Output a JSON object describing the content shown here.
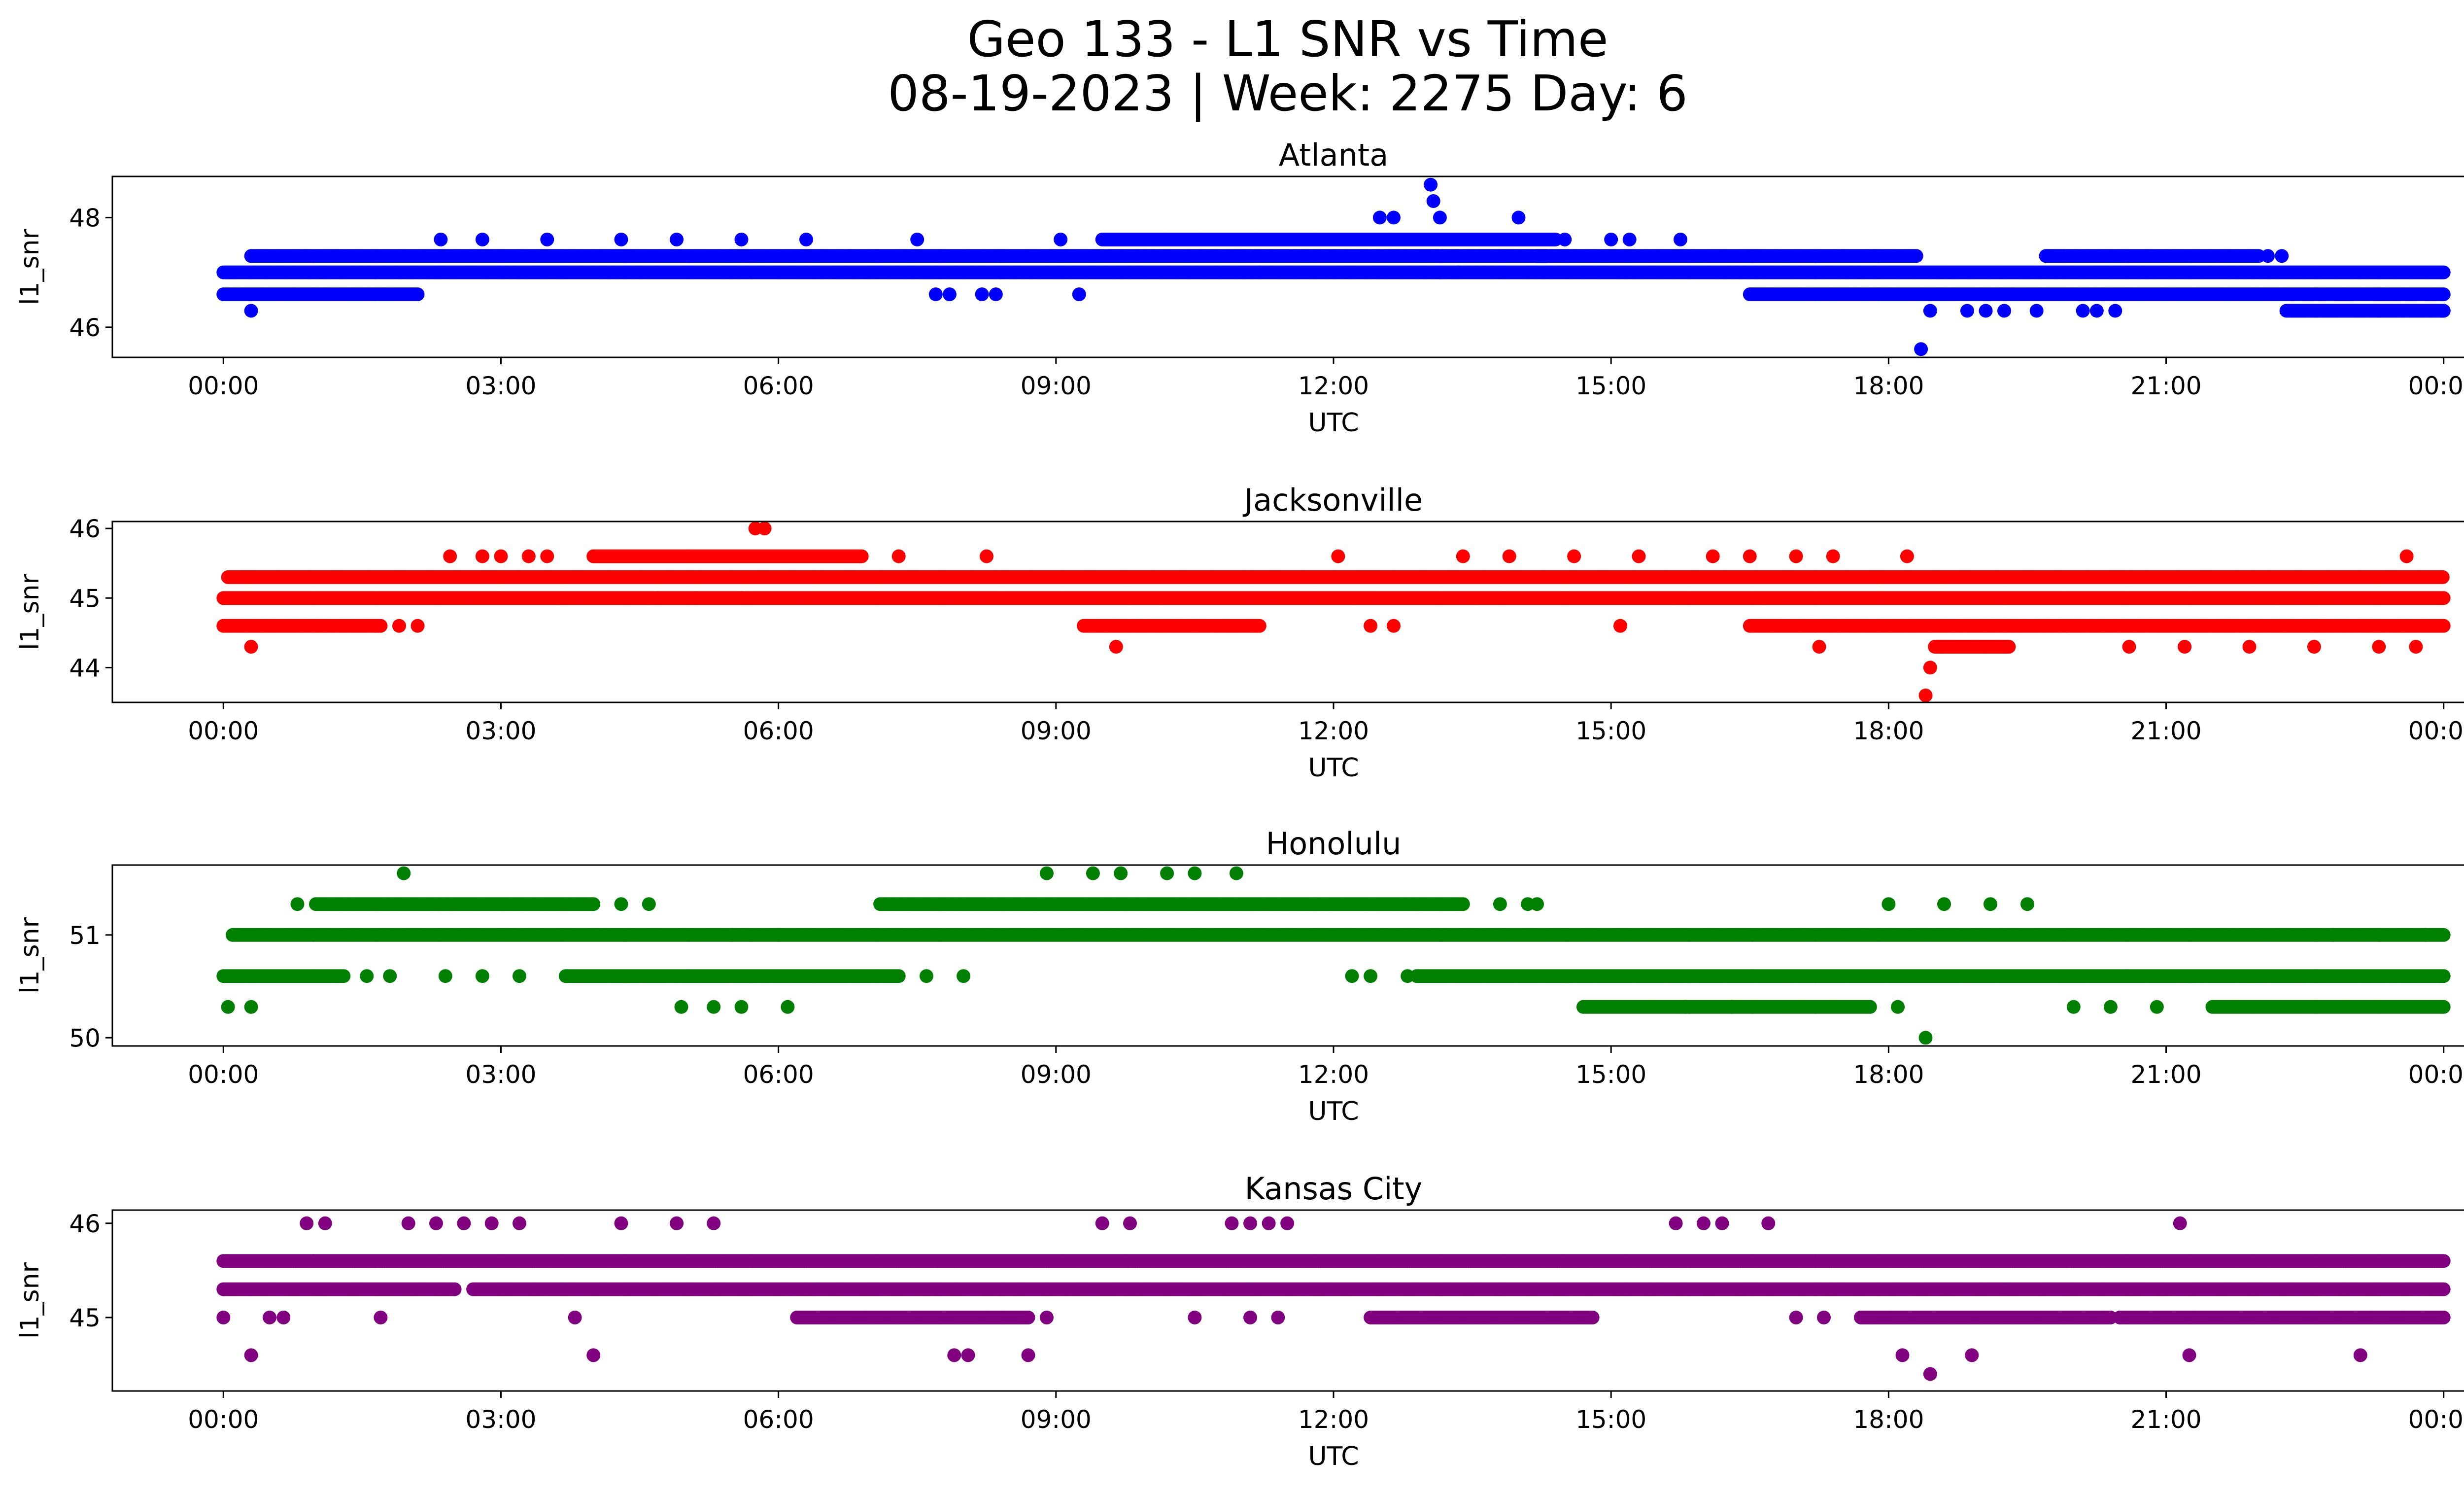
{
  "figure": {
    "title_line1": "Geo 133 - L1 SNR vs Time",
    "title_line2": "08-19-2023 | Week: 2275 Day: 6"
  },
  "chart_data": [
    {
      "type": "scatter",
      "title": "Atlanta",
      "xlabel": "UTC",
      "ylabel": "l1_snr",
      "color": "#0000ff",
      "x_ticks": [
        "00:00",
        "03:00",
        "06:00",
        "09:00",
        "12:00",
        "15:00",
        "18:00",
        "21:00",
        "00:00"
      ],
      "xlim_hours": [
        -1.2,
        25.2
      ],
      "y_ticks": [
        46,
        48
      ],
      "ylim": [
        45.45,
        48.75
      ],
      "base_levels": [
        {
          "from_hours": 0.0,
          "to_hours": 24.0,
          "y": 47.0
        },
        {
          "from_hours": 0.0,
          "to_hours": 2.1,
          "y": 46.6
        },
        {
          "from_hours": 0.3,
          "to_hours": 14.3,
          "y": 47.3
        },
        {
          "from_hours": 9.5,
          "to_hours": 14.4,
          "y": 47.6
        },
        {
          "from_hours": 16.5,
          "to_hours": 24.0,
          "y": 46.6
        },
        {
          "from_hours": 14.2,
          "to_hours": 18.3,
          "y": 47.3
        },
        {
          "from_hours": 19.7,
          "to_hours": 22.0,
          "y": 47.3
        },
        {
          "from_hours": 22.3,
          "to_hours": 24.0,
          "y": 46.3
        }
      ],
      "points": [
        {
          "x_hours": 0.3,
          "y": 46.3
        },
        {
          "x_hours": 2.35,
          "y": 47.6
        },
        {
          "x_hours": 2.8,
          "y": 47.6
        },
        {
          "x_hours": 3.5,
          "y": 47.6
        },
        {
          "x_hours": 4.3,
          "y": 47.6
        },
        {
          "x_hours": 4.9,
          "y": 47.6
        },
        {
          "x_hours": 5.6,
          "y": 47.6
        },
        {
          "x_hours": 6.3,
          "y": 47.6
        },
        {
          "x_hours": 7.5,
          "y": 47.6
        },
        {
          "x_hours": 7.7,
          "y": 46.6
        },
        {
          "x_hours": 7.85,
          "y": 46.6
        },
        {
          "x_hours": 8.2,
          "y": 46.6
        },
        {
          "x_hours": 8.35,
          "y": 46.6
        },
        {
          "x_hours": 9.05,
          "y": 47.6
        },
        {
          "x_hours": 9.25,
          "y": 46.6
        },
        {
          "x_hours": 11.2,
          "y": 47.0
        },
        {
          "x_hours": 12.5,
          "y": 48.0
        },
        {
          "x_hours": 12.65,
          "y": 48.0
        },
        {
          "x_hours": 13.05,
          "y": 48.6
        },
        {
          "x_hours": 13.08,
          "y": 48.3
        },
        {
          "x_hours": 13.15,
          "y": 48.0
        },
        {
          "x_hours": 13.35,
          "y": 47.0
        },
        {
          "x_hours": 14.0,
          "y": 48.0
        },
        {
          "x_hours": 14.5,
          "y": 47.6
        },
        {
          "x_hours": 15.0,
          "y": 47.6
        },
        {
          "x_hours": 15.2,
          "y": 47.6
        },
        {
          "x_hours": 15.75,
          "y": 47.6
        },
        {
          "x_hours": 18.35,
          "y": 45.6
        },
        {
          "x_hours": 18.45,
          "y": 46.3
        },
        {
          "x_hours": 18.85,
          "y": 46.3
        },
        {
          "x_hours": 19.05,
          "y": 46.3
        },
        {
          "x_hours": 19.25,
          "y": 46.3
        },
        {
          "x_hours": 19.6,
          "y": 46.3
        },
        {
          "x_hours": 20.1,
          "y": 46.3
        },
        {
          "x_hours": 20.25,
          "y": 46.3
        },
        {
          "x_hours": 20.45,
          "y": 46.3
        },
        {
          "x_hours": 22.1,
          "y": 47.3
        },
        {
          "x_hours": 22.25,
          "y": 47.3
        },
        {
          "x_hours": 24.0,
          "y": 46.3
        }
      ]
    },
    {
      "type": "scatter",
      "title": "Jacksonville",
      "xlabel": "UTC",
      "ylabel": "l1_snr",
      "color": "#ff0000",
      "x_ticks": [
        "00:00",
        "03:00",
        "06:00",
        "09:00",
        "12:00",
        "15:00",
        "18:00",
        "21:00",
        "00:00"
      ],
      "xlim_hours": [
        -1.2,
        25.2
      ],
      "y_ticks": [
        44,
        45,
        46
      ],
      "ylim": [
        43.5,
        46.1
      ],
      "base_levels": [
        {
          "from_hours": 0.0,
          "to_hours": 24.0,
          "y": 45.0
        },
        {
          "from_hours": 0.05,
          "to_hours": 24.0,
          "y": 45.3
        },
        {
          "from_hours": 0.0,
          "to_hours": 1.7,
          "y": 44.6
        },
        {
          "from_hours": 9.3,
          "to_hours": 11.2,
          "y": 44.6
        },
        {
          "from_hours": 16.5,
          "to_hours": 24.0,
          "y": 44.6
        },
        {
          "from_hours": 4.0,
          "to_hours": 6.9,
          "y": 45.6
        },
        {
          "from_hours": 18.5,
          "to_hours": 19.3,
          "y": 44.3
        }
      ],
      "points": [
        {
          "x_hours": 0.3,
          "y": 44.3
        },
        {
          "x_hours": 1.9,
          "y": 44.6
        },
        {
          "x_hours": 2.1,
          "y": 44.6
        },
        {
          "x_hours": 2.45,
          "y": 45.6
        },
        {
          "x_hours": 2.8,
          "y": 45.6
        },
        {
          "x_hours": 3.0,
          "y": 45.6
        },
        {
          "x_hours": 3.3,
          "y": 45.6
        },
        {
          "x_hours": 3.5,
          "y": 45.6
        },
        {
          "x_hours": 4.7,
          "y": 45.0
        },
        {
          "x_hours": 5.1,
          "y": 45.0
        },
        {
          "x_hours": 5.6,
          "y": 45.0
        },
        {
          "x_hours": 5.75,
          "y": 46.0
        },
        {
          "x_hours": 5.85,
          "y": 46.0
        },
        {
          "x_hours": 7.3,
          "y": 45.6
        },
        {
          "x_hours": 8.25,
          "y": 45.6
        },
        {
          "x_hours": 9.65,
          "y": 44.3
        },
        {
          "x_hours": 12.05,
          "y": 45.6
        },
        {
          "x_hours": 12.4,
          "y": 44.6
        },
        {
          "x_hours": 12.65,
          "y": 44.6
        },
        {
          "x_hours": 13.4,
          "y": 45.6
        },
        {
          "x_hours": 13.9,
          "y": 45.6
        },
        {
          "x_hours": 14.6,
          "y": 45.6
        },
        {
          "x_hours": 15.1,
          "y": 44.6
        },
        {
          "x_hours": 15.3,
          "y": 45.6
        },
        {
          "x_hours": 16.1,
          "y": 45.6
        },
        {
          "x_hours": 16.5,
          "y": 45.6
        },
        {
          "x_hours": 17.0,
          "y": 45.6
        },
        {
          "x_hours": 17.25,
          "y": 44.3
        },
        {
          "x_hours": 17.4,
          "y": 45.6
        },
        {
          "x_hours": 18.2,
          "y": 45.6
        },
        {
          "x_hours": 18.4,
          "y": 43.6
        },
        {
          "x_hours": 18.45,
          "y": 44.0
        },
        {
          "x_hours": 20.6,
          "y": 44.3
        },
        {
          "x_hours": 21.2,
          "y": 44.3
        },
        {
          "x_hours": 21.9,
          "y": 44.3
        },
        {
          "x_hours": 22.6,
          "y": 44.3
        },
        {
          "x_hours": 23.3,
          "y": 44.3
        },
        {
          "x_hours": 23.6,
          "y": 45.6
        },
        {
          "x_hours": 23.7,
          "y": 44.3
        }
      ]
    },
    {
      "type": "scatter",
      "title": "Honolulu",
      "xlabel": "UTC",
      "ylabel": "l1_snr",
      "color": "#008000",
      "x_ticks": [
        "00:00",
        "03:00",
        "06:00",
        "09:00",
        "12:00",
        "15:00",
        "18:00",
        "21:00",
        "00:00"
      ],
      "xlim_hours": [
        -1.2,
        25.2
      ],
      "y_ticks": [
        50,
        51
      ],
      "ylim": [
        49.92,
        51.68
      ],
      "base_levels": [
        {
          "from_hours": 0.1,
          "to_hours": 24.0,
          "y": 51.0
        },
        {
          "from_hours": 0.0,
          "to_hours": 1.3,
          "y": 50.6
        },
        {
          "from_hours": 3.7,
          "to_hours": 7.3,
          "y": 50.6
        },
        {
          "from_hours": 12.9,
          "to_hours": 24.0,
          "y": 50.6
        },
        {
          "from_hours": 1.0,
          "to_hours": 4.0,
          "y": 51.3
        },
        {
          "from_hours": 7.1,
          "to_hours": 13.4,
          "y": 51.3
        },
        {
          "from_hours": 14.7,
          "to_hours": 17.8,
          "y": 50.3
        },
        {
          "from_hours": 21.5,
          "to_hours": 24.0,
          "y": 50.3
        }
      ],
      "points": [
        {
          "x_hours": 0.05,
          "y": 50.3
        },
        {
          "x_hours": 0.3,
          "y": 50.3
        },
        {
          "x_hours": 0.8,
          "y": 51.3
        },
        {
          "x_hours": 1.55,
          "y": 50.6
        },
        {
          "x_hours": 1.8,
          "y": 50.6
        },
        {
          "x_hours": 1.95,
          "y": 51.6
        },
        {
          "x_hours": 2.4,
          "y": 50.6
        },
        {
          "x_hours": 2.8,
          "y": 50.6
        },
        {
          "x_hours": 3.2,
          "y": 50.6
        },
        {
          "x_hours": 4.3,
          "y": 51.3
        },
        {
          "x_hours": 4.6,
          "y": 51.3
        },
        {
          "x_hours": 4.95,
          "y": 50.3
        },
        {
          "x_hours": 5.3,
          "y": 50.3
        },
        {
          "x_hours": 5.6,
          "y": 50.3
        },
        {
          "x_hours": 6.1,
          "y": 50.3
        },
        {
          "x_hours": 5.5,
          "y": 51.0
        },
        {
          "x_hours": 6.0,
          "y": 51.0
        },
        {
          "x_hours": 7.6,
          "y": 50.6
        },
        {
          "x_hours": 8.0,
          "y": 50.6
        },
        {
          "x_hours": 8.9,
          "y": 51.6
        },
        {
          "x_hours": 9.4,
          "y": 51.6
        },
        {
          "x_hours": 9.7,
          "y": 51.6
        },
        {
          "x_hours": 10.2,
          "y": 51.6
        },
        {
          "x_hours": 10.5,
          "y": 51.6
        },
        {
          "x_hours": 10.95,
          "y": 51.6
        },
        {
          "x_hours": 12.2,
          "y": 50.6
        },
        {
          "x_hours": 12.4,
          "y": 50.6
        },
        {
          "x_hours": 12.8,
          "y": 50.6
        },
        {
          "x_hours": 13.8,
          "y": 51.3
        },
        {
          "x_hours": 14.1,
          "y": 51.3
        },
        {
          "x_hours": 14.2,
          "y": 51.3
        },
        {
          "x_hours": 15.8,
          "y": 50.3
        },
        {
          "x_hours": 16.3,
          "y": 50.3
        },
        {
          "x_hours": 18.0,
          "y": 51.3
        },
        {
          "x_hours": 18.1,
          "y": 50.3
        },
        {
          "x_hours": 18.4,
          "y": 50.0
        },
        {
          "x_hours": 18.6,
          "y": 51.3
        },
        {
          "x_hours": 19.1,
          "y": 51.3
        },
        {
          "x_hours": 19.5,
          "y": 51.3
        },
        {
          "x_hours": 20.0,
          "y": 50.3
        },
        {
          "x_hours": 20.4,
          "y": 50.3
        },
        {
          "x_hours": 20.9,
          "y": 50.3
        },
        {
          "x_hours": 22.8,
          "y": 51.0
        },
        {
          "x_hours": 23.3,
          "y": 51.0
        },
        {
          "x_hours": 23.8,
          "y": 51.0
        }
      ]
    },
    {
      "type": "scatter",
      "title": "Kansas City",
      "xlabel": "UTC",
      "ylabel": "l1_snr",
      "color": "#800080",
      "x_ticks": [
        "00:00",
        "03:00",
        "06:00",
        "09:00",
        "12:00",
        "15:00",
        "18:00",
        "21:00",
        "00:00"
      ],
      "xlim_hours": [
        -1.2,
        25.2
      ],
      "y_ticks": [
        45,
        46
      ],
      "ylim": [
        44.22,
        46.14
      ],
      "base_levels": [
        {
          "from_hours": 0.0,
          "to_hours": 24.0,
          "y": 45.6
        },
        {
          "from_hours": 0.0,
          "to_hours": 2.5,
          "y": 45.3
        },
        {
          "from_hours": 2.7,
          "to_hours": 24.0,
          "y": 45.3
        },
        {
          "from_hours": 6.2,
          "to_hours": 8.7,
          "y": 45.0
        },
        {
          "from_hours": 12.4,
          "to_hours": 14.8,
          "y": 45.0
        },
        {
          "from_hours": 17.7,
          "to_hours": 20.4,
          "y": 45.0
        },
        {
          "from_hours": 20.5,
          "to_hours": 24.0,
          "y": 45.0
        }
      ],
      "points": [
        {
          "x_hours": 0.0,
          "y": 45.0
        },
        {
          "x_hours": 0.3,
          "y": 44.6
        },
        {
          "x_hours": 0.5,
          "y": 45.0
        },
        {
          "x_hours": 0.65,
          "y": 45.0
        },
        {
          "x_hours": 0.9,
          "y": 46.0
        },
        {
          "x_hours": 1.1,
          "y": 46.0
        },
        {
          "x_hours": 1.7,
          "y": 45.0
        },
        {
          "x_hours": 2.0,
          "y": 46.0
        },
        {
          "x_hours": 2.3,
          "y": 46.0
        },
        {
          "x_hours": 2.6,
          "y": 46.0
        },
        {
          "x_hours": 2.9,
          "y": 46.0
        },
        {
          "x_hours": 3.2,
          "y": 46.0
        },
        {
          "x_hours": 3.8,
          "y": 45.0
        },
        {
          "x_hours": 4.0,
          "y": 44.6
        },
        {
          "x_hours": 4.3,
          "y": 46.0
        },
        {
          "x_hours": 4.9,
          "y": 46.0
        },
        {
          "x_hours": 5.3,
          "y": 46.0
        },
        {
          "x_hours": 7.9,
          "y": 44.6
        },
        {
          "x_hours": 8.05,
          "y": 44.6
        },
        {
          "x_hours": 8.7,
          "y": 44.6
        },
        {
          "x_hours": 8.9,
          "y": 45.0
        },
        {
          "x_hours": 9.5,
          "y": 46.0
        },
        {
          "x_hours": 9.8,
          "y": 46.0
        },
        {
          "x_hours": 10.5,
          "y": 45.0
        },
        {
          "x_hours": 10.9,
          "y": 46.0
        },
        {
          "x_hours": 11.1,
          "y": 46.0
        },
        {
          "x_hours": 11.3,
          "y": 46.0
        },
        {
          "x_hours": 11.5,
          "y": 46.0
        },
        {
          "x_hours": 11.1,
          "y": 45.0
        },
        {
          "x_hours": 11.4,
          "y": 45.0
        },
        {
          "x_hours": 15.7,
          "y": 46.0
        },
        {
          "x_hours": 16.0,
          "y": 46.0
        },
        {
          "x_hours": 16.2,
          "y": 46.0
        },
        {
          "x_hours": 16.7,
          "y": 46.0
        },
        {
          "x_hours": 17.0,
          "y": 45.0
        },
        {
          "x_hours": 17.3,
          "y": 45.0
        },
        {
          "x_hours": 18.15,
          "y": 44.6
        },
        {
          "x_hours": 18.45,
          "y": 44.4
        },
        {
          "x_hours": 18.9,
          "y": 44.6
        },
        {
          "x_hours": 21.15,
          "y": 46.0
        },
        {
          "x_hours": 21.25,
          "y": 44.6
        },
        {
          "x_hours": 23.1,
          "y": 44.6
        }
      ]
    }
  ]
}
